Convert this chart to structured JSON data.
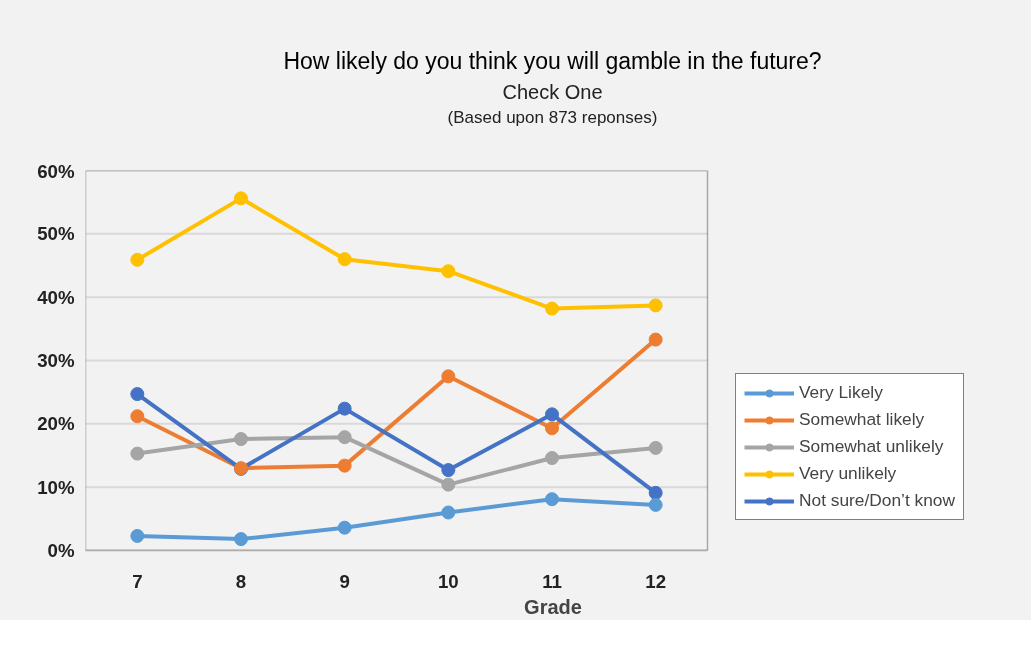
{
  "chart_data": {
    "type": "line",
    "title": "How likely do you think you will gamble in the future?",
    "subtitle": "Check One",
    "annotations": [
      "(Based upon 873 reponses)"
    ],
    "xlabel": "Grade",
    "categories": [
      "7",
      "8",
      "9",
      "10",
      "11",
      "12"
    ],
    "ylim": [
      0,
      60
    ],
    "yticks": [
      {
        "value": 0,
        "label": "0%"
      },
      {
        "value": 10,
        "label": "10%"
      },
      {
        "value": 20,
        "label": "20%"
      },
      {
        "value": 30,
        "label": "30%"
      },
      {
        "value": 40,
        "label": "40%"
      },
      {
        "value": 50,
        "label": "50%"
      },
      {
        "value": 60,
        "label": "60%"
      }
    ],
    "grid": "y",
    "legend": "right",
    "marker": "circle",
    "line_style": "solid",
    "series": [
      {
        "name": "Very Likely",
        "color": "#5b9bd5",
        "values": [
          2.3,
          1.8,
          3.6,
          6.0,
          8.1,
          7.2
        ]
      },
      {
        "name": "Somewhat likely",
        "color": "#ed7d31",
        "values": [
          21.2,
          13.0,
          13.4,
          27.5,
          19.3,
          33.3
        ]
      },
      {
        "name": "Somewhat unlikely",
        "color": "#a5a5a5",
        "values": [
          15.3,
          17.6,
          17.9,
          10.4,
          14.6,
          16.2
        ]
      },
      {
        "name": "Very unlikely",
        "color": "#ffc000",
        "values": [
          45.9,
          55.6,
          46.0,
          44.1,
          38.2,
          38.7
        ]
      },
      {
        "name": "Not sure/Don’t know",
        "color": "#4472c4",
        "values": [
          24.7,
          12.9,
          22.4,
          12.7,
          21.5,
          9.1
        ]
      }
    ]
  }
}
